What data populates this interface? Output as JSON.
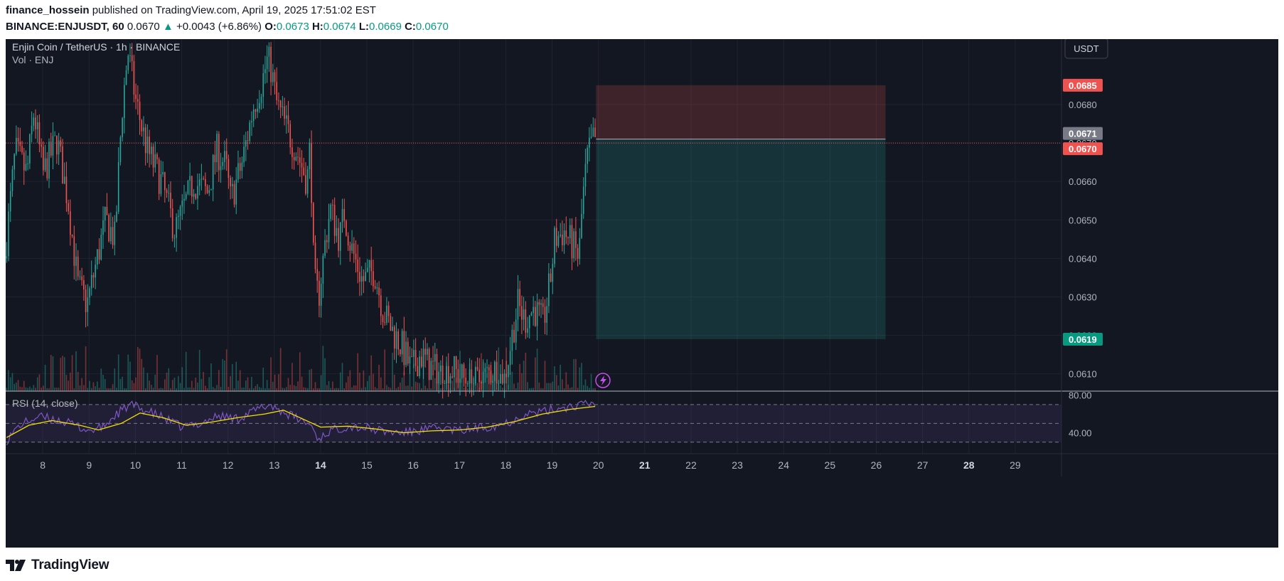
{
  "header": {
    "author": "finance_hossein",
    "published_text": "published on TradingView.com, April 19, 2025 17:51:02 EST",
    "symbol": "BINANCE:ENJUSDT, 60",
    "last": "0.0670",
    "change": "+0.0043 (+6.86%)",
    "open_label": "O:",
    "open": "0.0673",
    "high_label": "H:",
    "high": "0.0674",
    "low_label": "L:",
    "low": "0.0669",
    "close_label": "C:",
    "close": "0.0670"
  },
  "legend": {
    "title": "Enjin Coin / TetherUS · 1h · BINANCE",
    "volume": "Vol · ENJ",
    "rsi": "RSI (14, close)"
  },
  "currency_button": "USDT",
  "footer": {
    "brand": "TradingView"
  },
  "colors": {
    "up": "#26a69a",
    "down": "#ef5350",
    "background": "#131722",
    "rsi_line": "#7e57c2",
    "rsi_ma": "#f5e000",
    "stop_zone": "#ef5350",
    "target_zone": "#26a69a"
  },
  "chart_data": {
    "type": "candlestick",
    "symbol": "BINANCE:ENJUSDT",
    "interval": "1h",
    "y_axis": {
      "ticks": [
        "0.0680",
        "0.0670",
        "0.0660",
        "0.0650",
        "0.0640",
        "0.0630",
        "0.0620",
        "0.0610"
      ],
      "ylim": [
        0.06055,
        0.0697
      ]
    },
    "x_axis": {
      "ticks": [
        "8",
        "9",
        "10",
        "11",
        "12",
        "13",
        "14",
        "15",
        "16",
        "17",
        "18",
        "19",
        "20",
        "21",
        "22",
        "23",
        "24",
        "25",
        "26",
        "27",
        "28",
        "29"
      ],
      "bold_ticks": [
        "14",
        "21",
        "28"
      ],
      "xlim_days": [
        7.2,
        30.0
      ]
    },
    "price_path": [
      [
        7.22,
        0.064
      ],
      [
        7.45,
        0.0668
      ],
      [
        7.7,
        0.0662
      ],
      [
        7.85,
        0.0678
      ],
      [
        8.05,
        0.0662
      ],
      [
        8.35,
        0.0671
      ],
      [
        8.6,
        0.0654
      ],
      [
        8.8,
        0.0633
      ],
      [
        9.0,
        0.0628
      ],
      [
        9.2,
        0.0639
      ],
      [
        9.4,
        0.065
      ],
      [
        9.6,
        0.0645
      ],
      [
        9.75,
        0.0678
      ],
      [
        9.88,
        0.0694
      ],
      [
        10.05,
        0.0681
      ],
      [
        10.3,
        0.0668
      ],
      [
        10.6,
        0.066
      ],
      [
        10.9,
        0.0647
      ],
      [
        11.05,
        0.0652
      ],
      [
        11.3,
        0.066
      ],
      [
        11.6,
        0.0657
      ],
      [
        11.8,
        0.0668
      ],
      [
        12.0,
        0.0664
      ],
      [
        12.1,
        0.0655
      ],
      [
        12.35,
        0.0665
      ],
      [
        12.6,
        0.068
      ],
      [
        12.78,
        0.0686
      ],
      [
        12.92,
        0.0693
      ],
      [
        13.1,
        0.068
      ],
      [
        13.3,
        0.0674
      ],
      [
        13.55,
        0.0667
      ],
      [
        13.75,
        0.066
      ],
      [
        13.82,
        0.067
      ],
      [
        13.9,
        0.0634
      ],
      [
        14.0,
        0.063
      ],
      [
        14.15,
        0.0645
      ],
      [
        14.25,
        0.0653
      ],
      [
        14.45,
        0.0645
      ],
      [
        14.55,
        0.0652
      ],
      [
        14.7,
        0.0643
      ],
      [
        14.95,
        0.0634
      ],
      [
        15.2,
        0.0637
      ],
      [
        15.4,
        0.0626
      ],
      [
        15.6,
        0.0621
      ],
      [
        15.8,
        0.0617
      ],
      [
        16.0,
        0.0611
      ],
      [
        16.2,
        0.0615
      ],
      [
        16.4,
        0.0612
      ],
      [
        16.65,
        0.061
      ],
      [
        16.9,
        0.0611
      ],
      [
        17.1,
        0.0609
      ],
      [
        17.3,
        0.0607
      ],
      [
        17.55,
        0.0609
      ],
      [
        17.8,
        0.0611
      ],
      [
        18.0,
        0.0608
      ],
      [
        18.12,
        0.0616
      ],
      [
        18.3,
        0.0628
      ],
      [
        18.45,
        0.0624
      ],
      [
        18.65,
        0.0627
      ],
      [
        18.85,
        0.0623
      ],
      [
        19.0,
        0.0634
      ],
      [
        19.1,
        0.0645
      ],
      [
        19.3,
        0.0647
      ],
      [
        19.5,
        0.0643
      ],
      [
        19.62,
        0.064
      ],
      [
        19.7,
        0.0655
      ],
      [
        19.8,
        0.0666
      ],
      [
        19.93,
        0.0671
      ]
    ],
    "last_price": 0.067,
    "labels": [
      {
        "text": "0.0685",
        "value": 0.0685,
        "kind": "stop"
      },
      {
        "text": "0.0671",
        "value": 0.0671,
        "kind": "entry"
      },
      {
        "text": "0.0670",
        "value": 0.067,
        "kind": "last"
      },
      {
        "text": "0.0619",
        "value": 0.0619,
        "kind": "target"
      }
    ],
    "position": {
      "entry": 0.0671,
      "stop": 0.0685,
      "target": 0.0619,
      "start_day": 19.95,
      "end_day": 26.2
    },
    "rsi": {
      "name": "RSI (14, close)",
      "ticks": [
        "80.00",
        "40.00"
      ],
      "ylim": [
        20,
        82
      ],
      "bands": [
        70,
        50,
        30
      ],
      "path": [
        [
          7.22,
          32
        ],
        [
          7.5,
          48
        ],
        [
          7.9,
          57
        ],
        [
          8.3,
          54
        ],
        [
          8.7,
          48
        ],
        [
          9.0,
          42
        ],
        [
          9.3,
          46
        ],
        [
          9.6,
          60
        ],
        [
          9.9,
          70
        ],
        [
          10.2,
          64
        ],
        [
          10.6,
          56
        ],
        [
          11.0,
          46
        ],
        [
          11.4,
          50
        ],
        [
          11.8,
          58
        ],
        [
          12.2,
          55
        ],
        [
          12.6,
          64
        ],
        [
          12.9,
          70
        ],
        [
          13.2,
          62
        ],
        [
          13.5,
          55
        ],
        [
          13.8,
          48
        ],
        [
          13.95,
          33
        ],
        [
          14.2,
          42
        ],
        [
          14.6,
          47
        ],
        [
          15.0,
          45
        ],
        [
          15.4,
          41
        ],
        [
          15.8,
          40
        ],
        [
          16.2,
          43
        ],
        [
          16.6,
          45
        ],
        [
          17.0,
          42
        ],
        [
          17.4,
          45
        ],
        [
          17.8,
          48
        ],
        [
          18.1,
          52
        ],
        [
          18.4,
          60
        ],
        [
          18.8,
          62
        ],
        [
          19.1,
          66
        ],
        [
          19.4,
          68
        ],
        [
          19.7,
          70
        ],
        [
          19.93,
          71
        ]
      ],
      "ma_path": [
        [
          7.22,
          35
        ],
        [
          7.7,
          48
        ],
        [
          8.2,
          53
        ],
        [
          8.8,
          48
        ],
        [
          9.2,
          43
        ],
        [
          9.7,
          50
        ],
        [
          10.1,
          61
        ],
        [
          10.6,
          56
        ],
        [
          11.1,
          48
        ],
        [
          11.6,
          51
        ],
        [
          12.2,
          56
        ],
        [
          12.8,
          60
        ],
        [
          13.2,
          64
        ],
        [
          13.6,
          55
        ],
        [
          14.0,
          46
        ],
        [
          14.6,
          47
        ],
        [
          15.2,
          44
        ],
        [
          15.8,
          40
        ],
        [
          16.4,
          42
        ],
        [
          17.0,
          43
        ],
        [
          17.6,
          46
        ],
        [
          18.2,
          52
        ],
        [
          18.8,
          60
        ],
        [
          19.4,
          65
        ],
        [
          19.93,
          68
        ]
      ]
    }
  }
}
